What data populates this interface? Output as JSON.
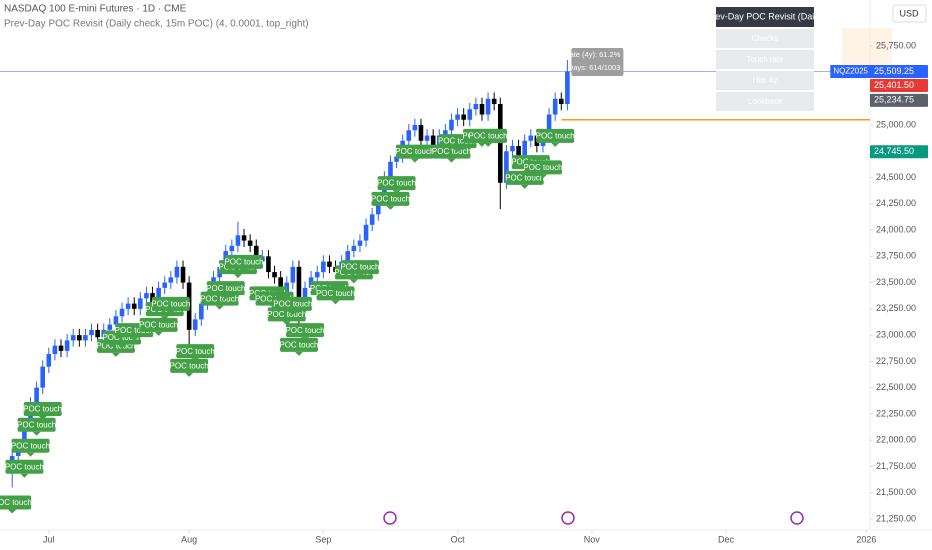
{
  "chart_data": {
    "type": "candlestick",
    "title": "NASDAQ 100 E-mini Futures · 1D · CME",
    "subtitle": "Prev-Day POC Revisit (Daily check, 15m POC) (4, 0.0001, top_right)",
    "currency": "USD",
    "categories": [
      null,
      null,
      null,
      null,
      null,
      null,
      null,
      null,
      null,
      null,
      null,
      null,
      null,
      null,
      null,
      null,
      null,
      null,
      null,
      null,
      null,
      null,
      null,
      null,
      null,
      null,
      null,
      null,
      null,
      null,
      null,
      null,
      null,
      null,
      null,
      null,
      null,
      null,
      null,
      null,
      null,
      null,
      null,
      null,
      null,
      null,
      null,
      null,
      null,
      null,
      null,
      null,
      null,
      null,
      null,
      null,
      null,
      null,
      null,
      null,
      null,
      null,
      null,
      null,
      null,
      null,
      null,
      null,
      null,
      null,
      null,
      null,
      null,
      null,
      null,
      null,
      null,
      null,
      null,
      null,
      null,
      null,
      null,
      null,
      null,
      null,
      null,
      null,
      null,
      null,
      null,
      null
    ],
    "open": [
      21750,
      21850,
      21950,
      22150,
      22350,
      22500,
      22700,
      22820,
      22900,
      22850,
      22950,
      23000,
      22950,
      23000,
      23050,
      22980,
      23050,
      23100,
      23180,
      23250,
      23300,
      23250,
      23350,
      23400,
      23300,
      23450,
      23500,
      23550,
      23650,
      23500,
      23050,
      23150,
      23300,
      23400,
      23550,
      23650,
      23800,
      23850,
      23950,
      23900,
      23850,
      23700,
      23750,
      23600,
      23550,
      23400,
      23500,
      23650,
      23250,
      23450,
      23550,
      23600,
      23700,
      23650,
      23600,
      23700,
      23800,
      23850,
      23900,
      24050,
      24150,
      24300,
      24500,
      24650,
      24700,
      24850,
      24950,
      25000,
      24850,
      24900,
      24800,
      24900,
      24950,
      25050,
      25100,
      25050,
      25150,
      25200,
      25100,
      25250,
      25200,
      24450,
      24750,
      24800,
      24700,
      24850,
      24900,
      24800,
      24900,
      25100,
      25250,
      25200
    ],
    "high": [
      21910,
      22010,
      22210,
      22410,
      22560,
      22760,
      22880,
      22960,
      22960,
      23010,
      23060,
      23060,
      23060,
      23110,
      23110,
      23110,
      23160,
      23240,
      23310,
      23360,
      23360,
      23410,
      23460,
      23460,
      23510,
      23560,
      23610,
      23710,
      23710,
      23560,
      23210,
      23360,
      23460,
      23610,
      23710,
      23860,
      23910,
      24080,
      24010,
      23960,
      23910,
      23810,
      23810,
      23660,
      23610,
      23560,
      23710,
      23710,
      23510,
      23610,
      23660,
      23760,
      23760,
      23710,
      23760,
      23860,
      23910,
      23960,
      24110,
      24210,
      24360,
      24560,
      24710,
      24760,
      24910,
      25010,
      25060,
      25060,
      24960,
      24960,
      24960,
      25010,
      25110,
      25160,
      25160,
      25210,
      25260,
      25260,
      25310,
      25310,
      25260,
      24810,
      24860,
      24860,
      24910,
      24960,
      24960,
      24960,
      25160,
      25310,
      25310,
      25620
    ],
    "low": [
      21550,
      21790,
      21890,
      22090,
      22290,
      22440,
      22640,
      22760,
      22790,
      22790,
      22890,
      22890,
      22890,
      22940,
      22920,
      22920,
      22990,
      23040,
      23120,
      23190,
      23190,
      23190,
      23290,
      23240,
      23240,
      23390,
      23440,
      23490,
      23440,
      22850,
      22990,
      23090,
      23240,
      23340,
      23490,
      23590,
      23740,
      23790,
      23840,
      23790,
      23640,
      23640,
      23540,
      23490,
      23340,
      23340,
      23440,
      23050,
      23190,
      23390,
      23490,
      23540,
      23590,
      23540,
      23540,
      23640,
      23740,
      23790,
      23840,
      23990,
      24090,
      24240,
      24440,
      24590,
      24640,
      24790,
      24890,
      24790,
      24790,
      24740,
      24740,
      24840,
      24890,
      24990,
      24990,
      24990,
      25090,
      25040,
      25040,
      25140,
      24200,
      24390,
      24690,
      24640,
      24640,
      24790,
      24740,
      24740,
      24840,
      25040,
      25140,
      25140
    ],
    "close": [
      21850,
      21950,
      22150,
      22350,
      22500,
      22700,
      22820,
      22900,
      22850,
      22950,
      23000,
      22950,
      23000,
      23050,
      22980,
      23050,
      23100,
      23180,
      23250,
      23300,
      23250,
      23350,
      23400,
      23300,
      23450,
      23500,
      23550,
      23650,
      23500,
      23050,
      23150,
      23300,
      23400,
      23550,
      23650,
      23800,
      23850,
      23950,
      23900,
      23850,
      23700,
      23750,
      23600,
      23550,
      23400,
      23500,
      23650,
      23250,
      23450,
      23550,
      23600,
      23700,
      23650,
      23600,
      23700,
      23800,
      23850,
      23900,
      24050,
      24150,
      24300,
      24500,
      24650,
      24700,
      24850,
      24950,
      25000,
      24850,
      24900,
      24800,
      24900,
      24950,
      25050,
      25100,
      25050,
      25150,
      25200,
      25100,
      25250,
      25200,
      24450,
      24750,
      24800,
      24700,
      24850,
      24900,
      24800,
      24900,
      25100,
      25250,
      25200,
      25509.25
    ],
    "up_color": "#2962ff",
    "down_color": "#000000",
    "xlim": [
      -2,
      140.6
    ],
    "xticks": [
      {
        "value": 6,
        "label": "Jul"
      },
      {
        "value": 29,
        "label": "Aug"
      },
      {
        "value": 51,
        "label": "Sep"
      },
      {
        "value": 73,
        "label": "Oct"
      },
      {
        "value": 95,
        "label": "Nov"
      },
      {
        "value": 117,
        "label": "Dec"
      },
      {
        "value": 140,
        "label": "2026"
      }
    ],
    "ylim": [
      21145,
      26190
    ],
    "yticks": [
      {
        "value": 21250,
        "label": "21,250.00"
      },
      {
        "value": 21500,
        "label": "21,500.00"
      },
      {
        "value": 21750,
        "label": "21,750.00"
      },
      {
        "value": 22000,
        "label": "22,000.00"
      },
      {
        "value": 22250,
        "label": "22,250.00"
      },
      {
        "value": 22500,
        "label": "22,500.00"
      },
      {
        "value": 22750,
        "label": "22,750.00"
      },
      {
        "value": 23000,
        "label": "23,000.00"
      },
      {
        "value": 23250,
        "label": "23,250.00"
      },
      {
        "value": 23500,
        "label": "23,500.00"
      },
      {
        "value": 23750,
        "label": "23,750.00"
      },
      {
        "value": 24000,
        "label": "24,000.00"
      },
      {
        "value": 24250,
        "label": "24,250.00"
      },
      {
        "value": 24500,
        "label": "24,500.00"
      },
      {
        "value": 24750,
        "label": "24,750.00"
      },
      {
        "value": 25000,
        "label": "25,000.00"
      },
      {
        "value": 25250,
        "label": "25,250.00"
      },
      {
        "value": 25500,
        "label": "25,500.00"
      },
      {
        "value": 25750,
        "label": "25,750.00"
      }
    ],
    "poc_label": "POC touch",
    "poc_touches": [
      0,
      2,
      3,
      4,
      5,
      17,
      18,
      20,
      24,
      25,
      26,
      29,
      30,
      34,
      35,
      37,
      38,
      42,
      43,
      45,
      46,
      47,
      48,
      52,
      53,
      56,
      57,
      62,
      63,
      66,
      72,
      73,
      77,
      78,
      84,
      85,
      87,
      89
    ],
    "poc_color": "#43a047",
    "poc_line": 25050,
    "poc_line_color": "#f59d1f",
    "symbol": "NQZ2025",
    "price_labels": [
      {
        "value": 25509.25,
        "label": "25,509.25",
        "color": "#2962ff"
      },
      {
        "value": 25401.5,
        "label": "25,401.50",
        "color": "#e53935"
      },
      {
        "value": 25234.75,
        "label": "25,234.75",
        "color": "#5d606b"
      },
      {
        "value": 24745.5,
        "label": "24,745.50",
        "color": "#089981"
      }
    ],
    "tooltip": [
      "POC hit-rate (4y): 61.2%",
      "Days: 614/1003"
    ],
    "table": {
      "header": "Prev-Day POC Revisit (Daily)",
      "rows": [
        "Checks",
        "Touch rate",
        "Hits 4y",
        "Lookback"
      ]
    }
  }
}
